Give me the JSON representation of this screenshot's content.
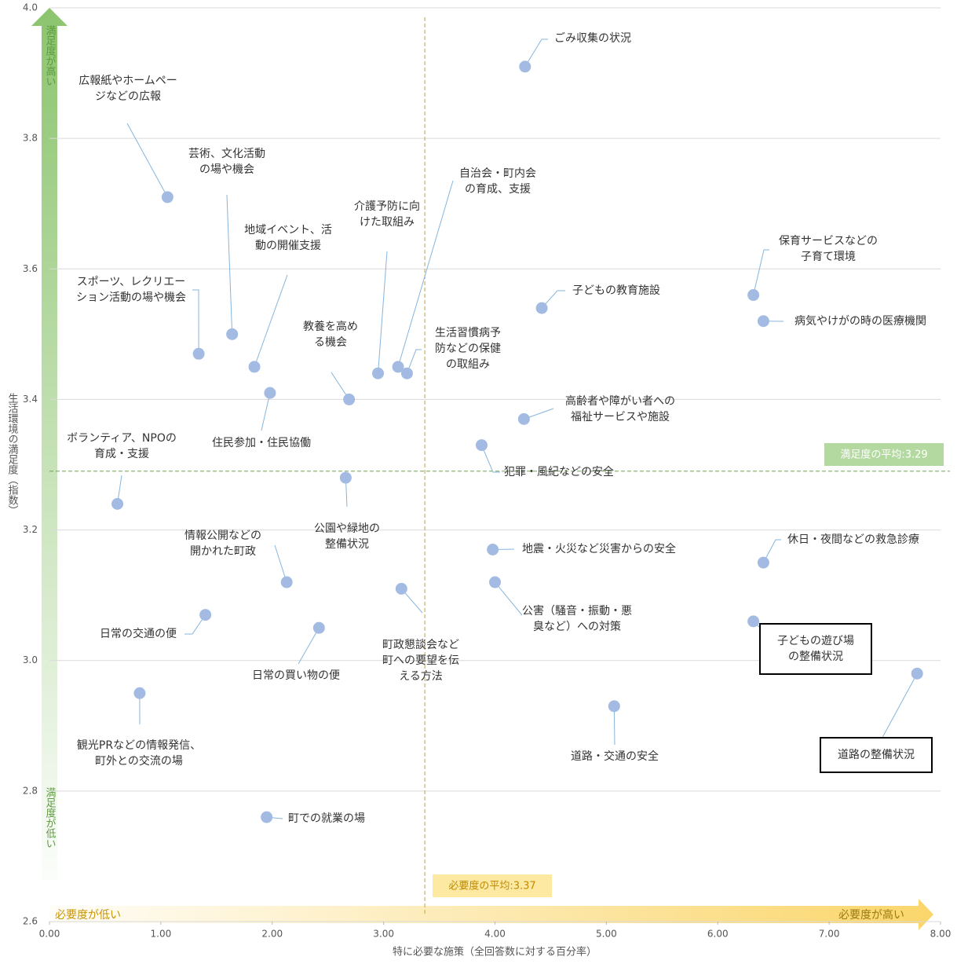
{
  "chart_data": {
    "type": "scatter",
    "xlabel": "特に必要な施策（全回答数に対する百分率）",
    "ylabel": "生活環境の満足度（指数）",
    "xlim": [
      0,
      8
    ],
    "ylim": [
      2.6,
      4.0
    ],
    "xticks": [
      {
        "value": 0,
        "label": "0.00"
      },
      {
        "value": 1,
        "label": "1.00"
      },
      {
        "value": 2,
        "label": "2.00"
      },
      {
        "value": 3,
        "label": "3.00"
      },
      {
        "value": 4,
        "label": "4.00"
      },
      {
        "value": 5,
        "label": "5.00"
      },
      {
        "value": 6,
        "label": "6.00"
      },
      {
        "value": 7,
        "label": "7.00"
      },
      {
        "value": 8,
        "label": "8.00"
      }
    ],
    "yticks": [
      {
        "value": 2.6,
        "label": "2.6"
      },
      {
        "value": 2.8,
        "label": "2.8"
      },
      {
        "value": 3.0,
        "label": "3.0"
      },
      {
        "value": 3.2,
        "label": "3.2"
      },
      {
        "value": 3.4,
        "label": "3.4"
      },
      {
        "value": 3.6,
        "label": "3.6"
      },
      {
        "value": 3.8,
        "label": "3.8"
      },
      {
        "value": 4.0,
        "label": "4.0"
      }
    ],
    "grid": true,
    "color": "#a3bbe3",
    "y_high_label": "満足度が高い",
    "y_low_label": "満足度が低い",
    "x_low_label": "必要度が低い",
    "x_high_label": "必要度が高い",
    "x_mean": {
      "value": 3.37,
      "label": "必要度の平均:3.37"
    },
    "y_mean": {
      "value": 3.29,
      "label": "満足度の平均:3.29"
    },
    "points": [
      {
        "label": [
          "ごみ収集の状況"
        ],
        "x": 4.27,
        "y": 3.91
      },
      {
        "label": [
          "広報紙やホームペー",
          "ジなどの広報"
        ],
        "x": 1.06,
        "y": 3.71
      },
      {
        "label": [
          "芸術、文化活動",
          "の場や機会"
        ],
        "x": 1.64,
        "y": 3.5
      },
      {
        "label": [
          "自治会・町内会",
          "の育成、支援"
        ],
        "x": 3.13,
        "y": 3.45
      },
      {
        "label": [
          "介護予防に向",
          "けた取組み"
        ],
        "x": 2.95,
        "y": 3.44
      },
      {
        "label": [
          "地域イベント、活",
          "動の開催支援"
        ],
        "x": 1.84,
        "y": 3.45
      },
      {
        "label": [
          "スポーツ、レクリエー",
          "ション活動の場や機会"
        ],
        "x": 1.34,
        "y": 3.47
      },
      {
        "label": [
          "保育サービスなどの",
          "子育て環境"
        ],
        "x": 6.32,
        "y": 3.56
      },
      {
        "label": [
          "子どもの教育施設"
        ],
        "x": 4.42,
        "y": 3.54
      },
      {
        "label": [
          "病気やけがの時の医療機関"
        ],
        "x": 6.41,
        "y": 3.52
      },
      {
        "label": [
          "教養を高め",
          "る機会"
        ],
        "x": 2.69,
        "y": 3.4
      },
      {
        "label": [
          "生活習慣病予",
          "防などの保健",
          "の取組み"
        ],
        "x": 3.21,
        "y": 3.44
      },
      {
        "label": [
          "住民参加・住民協働"
        ],
        "x": 1.98,
        "y": 3.41
      },
      {
        "label": [
          "高齢者や障がい者への",
          "福祉サービスや施設"
        ],
        "x": 4.26,
        "y": 3.37
      },
      {
        "label": [
          "犯罪・風紀などの安全"
        ],
        "x": 3.88,
        "y": 3.33
      },
      {
        "label": [
          "ボランティア、NPOの",
          "育成・支援"
        ],
        "x": 0.61,
        "y": 3.24
      },
      {
        "label": [
          "公園や緑地の",
          "整備状況"
        ],
        "x": 2.66,
        "y": 3.28
      },
      {
        "label": [
          "地震・火災など災害からの安全"
        ],
        "x": 3.98,
        "y": 3.17
      },
      {
        "label": [
          "休日・夜間などの救急診療"
        ],
        "x": 6.41,
        "y": 3.15
      },
      {
        "label": [
          "情報公開などの",
          "開かれた町政"
        ],
        "x": 2.13,
        "y": 3.12
      },
      {
        "label": [
          "町政懇談会など",
          "町への要望を伝",
          "える方法"
        ],
        "x": 3.16,
        "y": 3.11
      },
      {
        "label": [
          "公害（騒音・振動・悪",
          "臭など）への対策"
        ],
        "x": 4.0,
        "y": 3.12
      },
      {
        "label": [
          "日常の交通の便"
        ],
        "x": 1.4,
        "y": 3.07
      },
      {
        "label": [
          "日常の買い物の便"
        ],
        "x": 2.42,
        "y": 3.05
      },
      {
        "label": [
          "子どもの遊び場",
          "の整備状況"
        ],
        "x": 6.32,
        "y": 3.06,
        "highlight": true
      },
      {
        "label": [
          "道路の整備状況"
        ],
        "x": 7.79,
        "y": 2.98,
        "highlight": true
      },
      {
        "label": [
          "観光PRなどの情報発信、",
          "町外との交流の場"
        ],
        "x": 0.81,
        "y": 2.95
      },
      {
        "label": [
          "道路・交通の安全"
        ],
        "x": 5.07,
        "y": 2.93
      },
      {
        "label": [
          "町での就業の場"
        ],
        "x": 1.95,
        "y": 2.76
      }
    ]
  }
}
